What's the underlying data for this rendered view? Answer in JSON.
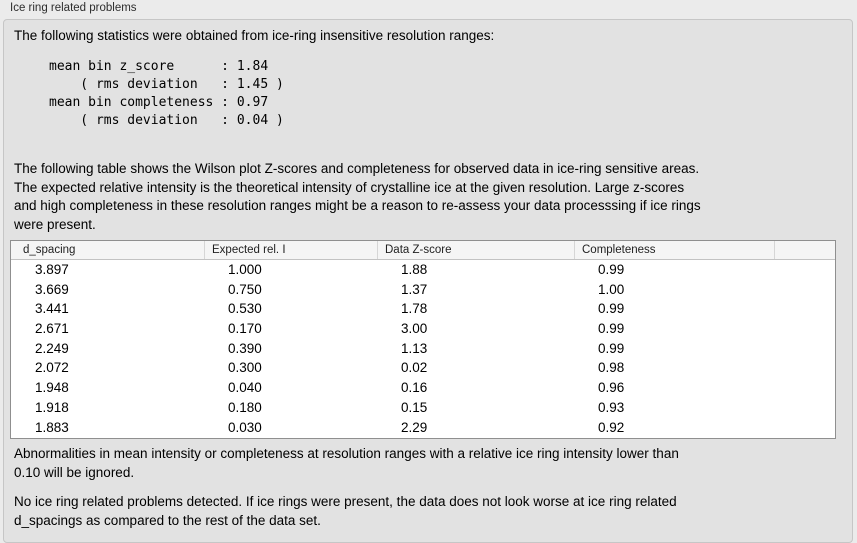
{
  "panel_title": "Ice ring related problems",
  "intro_text": "The following statistics were obtained from ice-ring insensitive resolution ranges:",
  "stats_block": "mean bin z_score      : 1.84\n    ( rms deviation   : 1.45 )\nmean bin completeness : 0.97\n    ( rms deviation   : 0.04 )",
  "table_description": "The following table shows the Wilson plot Z-scores and completeness for observed data in ice-ring sensitive areas.\nThe expected relative intensity is the theoretical intensity of crystalline ice at the given resolution. Large z-scores\nand high completeness in these resolution ranges might be a reason to re-assess your data processsing if ice rings\nwere present.",
  "table": {
    "columns": [
      "d_spacing",
      "Expected rel. I",
      "Data Z-score",
      "Completeness"
    ],
    "rows": [
      [
        "3.897",
        "1.000",
        "1.88",
        "0.99"
      ],
      [
        "3.669",
        "0.750",
        "1.37",
        "1.00"
      ],
      [
        "3.441",
        "0.530",
        "1.78",
        "0.99"
      ],
      [
        "2.671",
        "0.170",
        "3.00",
        "0.99"
      ],
      [
        "2.249",
        "0.390",
        "1.13",
        "0.99"
      ],
      [
        "2.072",
        "0.300",
        "0.02",
        "0.98"
      ],
      [
        "1.948",
        "0.040",
        "0.16",
        "0.96"
      ],
      [
        "1.918",
        "0.180",
        "0.15",
        "0.93"
      ],
      [
        "1.883",
        "0.030",
        "2.29",
        "0.92"
      ]
    ]
  },
  "ignore_note": "Abnormalities in mean intensity or completeness at resolution ranges with a relative ice ring intensity lower than\n0.10 will be ignored.",
  "conclusion": "No ice ring related problems detected. If ice rings were present, the data does not look worse at ice ring related\nd_spacings as compared to the rest of the data set.",
  "colors": {
    "window_bg": "#ebebeb",
    "panel_bg": "#e2e2e2",
    "panel_border": "#c6c6c6",
    "table_header_bg": "#f5f5f5",
    "table_border": "#8f8f8f",
    "text": "#000000"
  }
}
